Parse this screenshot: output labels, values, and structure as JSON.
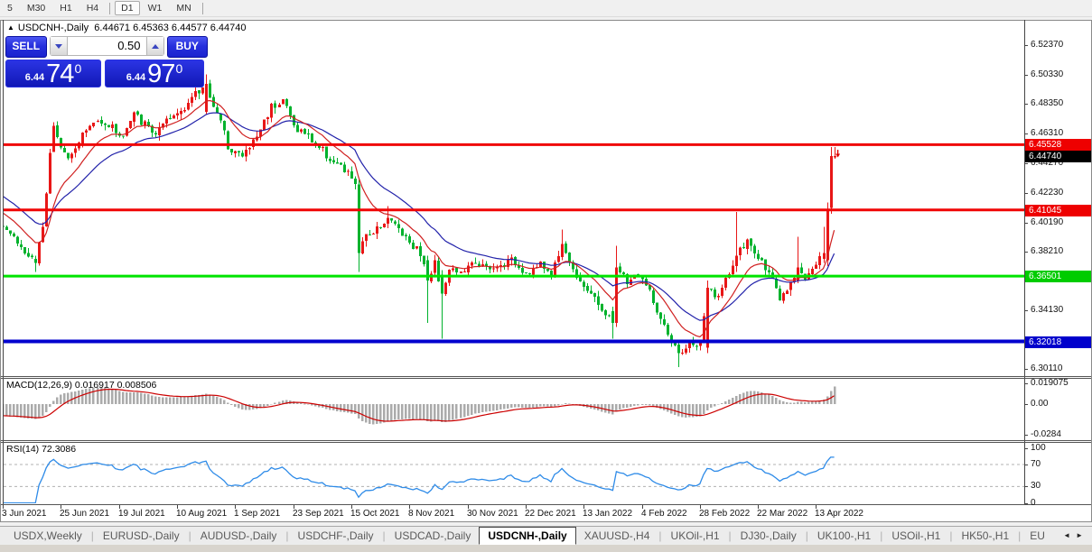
{
  "toolbar": {
    "groups": [
      [
        "5",
        "M30",
        "H1",
        "H4"
      ],
      [
        "D1",
        "W1",
        "MN"
      ]
    ],
    "active": "D1"
  },
  "header": {
    "arrow": "▲",
    "symbol": "USDCNH-,Daily",
    "ohlc": "6.44671 6.45363 6.44577 6.44740"
  },
  "trade": {
    "sell_label": "SELL",
    "buy_label": "BUY",
    "spread": "0.50",
    "sell_price": {
      "prefix": "6.44",
      "big": "74",
      "sup": "0"
    },
    "buy_price": {
      "prefix": "6.44",
      "big": "97",
      "sup": "0"
    }
  },
  "chart_data": {
    "type": "candlestick",
    "symbol": "USDCNH-",
    "period": "Daily",
    "bars": 230,
    "colors": {
      "up": "#e81717",
      "down": "#00b22d",
      "ma_fast": "#d02020",
      "ma_slow": "#2222aa",
      "macd_hist": "#ababab",
      "macd_signal": "#cc0000",
      "rsi": "#2e8be8",
      "dash": "#b0b0b0",
      "axis_text": "#111111"
    },
    "price_axis_ticks": [
      {
        "v": 6.5237,
        "label": "6.52370"
      },
      {
        "v": 6.5033,
        "label": "6.50330"
      },
      {
        "v": 6.4835,
        "label": "6.48350"
      },
      {
        "v": 6.4631,
        "label": "6.46310"
      },
      {
        "v": 6.4427,
        "label": "6.44270"
      },
      {
        "v": 6.4223,
        "label": "6.42230"
      },
      {
        "v": 6.4019,
        "label": "6.40190"
      },
      {
        "v": 6.3821,
        "label": "6.38210"
      },
      {
        "v": 6.3617,
        "label": "6.36170"
      },
      {
        "v": 6.3413,
        "label": "6.34130"
      },
      {
        "v": 6.3011,
        "label": "6.30110"
      }
    ],
    "levels": [
      {
        "v": 6.45528,
        "label": "6.45528",
        "color": "#f00505",
        "badge": "#ee0000",
        "thickness": 3
      },
      {
        "v": 6.41045,
        "label": "6.41045",
        "color": "#f00505",
        "badge": "#ee0000",
        "thickness": 3
      },
      {
        "v": 6.36501,
        "label": "6.36501",
        "color": "#00e400",
        "badge": "#00cc00",
        "thickness": 3
      },
      {
        "v": 6.32018,
        "label": "6.32018",
        "color": "#0202cf",
        "badge": "#0000cc",
        "thickness": 4
      }
    ],
    "last_price": {
      "v": 6.4474,
      "label": "6.44740",
      "badge": "#000000"
    },
    "x_labels": [
      {
        "bar": 0,
        "label": "3 Jun 2021"
      },
      {
        "bar": 16,
        "label": "25 Jun 2021"
      },
      {
        "bar": 32,
        "label": "19 Jul 2021"
      },
      {
        "bar": 48,
        "label": "10 Aug 2021"
      },
      {
        "bar": 64,
        "label": "1 Sep 2021"
      },
      {
        "bar": 80,
        "label": "23 Sep 2021"
      },
      {
        "bar": 96,
        "label": "15 Oct 2021"
      },
      {
        "bar": 112,
        "label": "8 Nov 2021"
      },
      {
        "bar": 128,
        "label": "30 Nov 2021"
      },
      {
        "bar": 144,
        "label": "22 Dec 2021"
      },
      {
        "bar": 160,
        "label": "13 Jan 2022"
      },
      {
        "bar": 176,
        "label": "4 Feb 2022"
      },
      {
        "bar": 192,
        "label": "28 Feb 2022"
      },
      {
        "bar": 208,
        "label": "22 Mar 2022"
      },
      {
        "bar": 224,
        "label": "13 Apr 2022"
      }
    ],
    "keyframes": [
      [
        0,
        6.401
      ],
      [
        3,
        6.392
      ],
      [
        6,
        6.381
      ],
      [
        9,
        6.374
      ],
      [
        11,
        6.398
      ],
      [
        13,
        6.452
      ],
      [
        14,
        6.47
      ],
      [
        16,
        6.456
      ],
      [
        18,
        6.447
      ],
      [
        21,
        6.459
      ],
      [
        24,
        6.468
      ],
      [
        27,
        6.473
      ],
      [
        30,
        6.467
      ],
      [
        33,
        6.461
      ],
      [
        36,
        6.476
      ],
      [
        39,
        6.469
      ],
      [
        42,
        6.463
      ],
      [
        45,
        6.47
      ],
      [
        48,
        6.477
      ],
      [
        51,
        6.485
      ],
      [
        56,
        6.496
      ],
      [
        59,
        6.477
      ],
      [
        62,
        6.455
      ],
      [
        66,
        6.447
      ],
      [
        70,
        6.461
      ],
      [
        74,
        6.482
      ],
      [
        77,
        6.487
      ],
      [
        80,
        6.468
      ],
      [
        84,
        6.461
      ],
      [
        88,
        6.451
      ],
      [
        92,
        6.441
      ],
      [
        96,
        6.433
      ],
      [
        97,
        6.429
      ],
      [
        98,
        6.381
      ],
      [
        100,
        6.392
      ],
      [
        103,
        6.399
      ],
      [
        106,
        6.404
      ],
      [
        109,
        6.398
      ],
      [
        112,
        6.389
      ],
      [
        115,
        6.381
      ],
      [
        117,
        6.362
      ],
      [
        119,
        6.374
      ],
      [
        121,
        6.353
      ],
      [
        123,
        6.371
      ],
      [
        126,
        6.367
      ],
      [
        130,
        6.375
      ],
      [
        134,
        6.369
      ],
      [
        137,
        6.372
      ],
      [
        140,
        6.376
      ],
      [
        144,
        6.367
      ],
      [
        148,
        6.373
      ],
      [
        151,
        6.366
      ],
      [
        154,
        6.387
      ],
      [
        157,
        6.369
      ],
      [
        160,
        6.359
      ],
      [
        163,
        6.349
      ],
      [
        166,
        6.339
      ],
      [
        168,
        6.333
      ],
      [
        169,
        6.371
      ],
      [
        172,
        6.361
      ],
      [
        175,
        6.367
      ],
      [
        178,
        6.354
      ],
      [
        181,
        6.334
      ],
      [
        184,
        6.319
      ],
      [
        186,
        6.312
      ],
      [
        189,
        6.318
      ],
      [
        192,
        6.317
      ],
      [
        194,
        6.357
      ],
      [
        197,
        6.351
      ],
      [
        200,
        6.367
      ],
      [
        202,
        6.379
      ],
      [
        205,
        6.389
      ],
      [
        208,
        6.377
      ],
      [
        211,
        6.369
      ],
      [
        214,
        6.348
      ],
      [
        217,
        6.359
      ],
      [
        219,
        6.371
      ],
      [
        221,
        6.364
      ],
      [
        224,
        6.373
      ],
      [
        226,
        6.381
      ],
      [
        227,
        6.41
      ],
      [
        228,
        6.4474
      ],
      [
        229,
        6.4474
      ]
    ],
    "overrides": [
      {
        "i": 9,
        "o": 6.377,
        "h": 6.379,
        "l": 6.368,
        "c": 6.374
      },
      {
        "i": 56,
        "o": 6.478,
        "h": 6.5035,
        "l": 6.476,
        "c": 6.497
      },
      {
        "i": 98,
        "o": 6.428,
        "h": 6.431,
        "l": 6.368,
        "c": 6.381
      },
      {
        "i": 106,
        "o": 6.401,
        "h": 6.413,
        "l": 6.398,
        "c": 6.405
      },
      {
        "i": 117,
        "o": 6.376,
        "h": 6.379,
        "l": 6.333,
        "c": 6.362
      },
      {
        "i": 121,
        "o": 6.366,
        "h": 6.369,
        "l": 6.322,
        "c": 6.353
      },
      {
        "i": 154,
        "o": 6.378,
        "h": 6.397,
        "l": 6.376,
        "c": 6.387
      },
      {
        "i": 168,
        "o": 6.341,
        "h": 6.344,
        "l": 6.322,
        "c": 6.333
      },
      {
        "i": 169,
        "o": 6.333,
        "h": 6.386,
        "l": 6.33,
        "c": 6.371
      },
      {
        "i": 186,
        "o": 6.318,
        "h": 6.321,
        "l": 6.3025,
        "c": 6.312
      },
      {
        "i": 194,
        "o": 6.316,
        "h": 6.362,
        "l": 6.312,
        "c": 6.357
      },
      {
        "i": 202,
        "o": 6.372,
        "h": 6.409,
        "l": 6.368,
        "c": 6.379
      },
      {
        "i": 219,
        "o": 6.362,
        "h": 6.392,
        "l": 6.36,
        "c": 6.371
      },
      {
        "i": 226,
        "o": 6.377,
        "h": 6.399,
        "l": 6.374,
        "c": 6.381
      },
      {
        "i": 227,
        "o": 6.376,
        "h": 6.4155,
        "l": 6.372,
        "c": 6.41
      },
      {
        "i": 228,
        "o": 6.412,
        "h": 6.4536,
        "l": 6.408,
        "c": 6.4474
      },
      {
        "i": 229,
        "o": 6.44671,
        "h": 6.45363,
        "l": 6.44577,
        "c": 6.4474
      }
    ],
    "default_volatility": 0.0025,
    "volatility_zones": [
      {
        "from": 12,
        "to": 98,
        "v": 0.0034
      },
      {
        "from": 99,
        "to": 125,
        "v": 0.0029
      },
      {
        "from": 126,
        "to": 165,
        "v": 0.002
      },
      {
        "from": 166,
        "to": 210,
        "v": 0.0027
      },
      {
        "from": 211,
        "to": 226,
        "v": 0.0018
      }
    ],
    "warmup": {
      "bars": 40,
      "from": 6.47,
      "to": 6.401
    },
    "marker": {
      "bar": 229,
      "from": 6.4518,
      "to": 6.4472,
      "color": "#dd0000"
    },
    "indicators": {
      "ma_fast_period": 12,
      "ma_slow_period": 26,
      "macd": {
        "label": "MACD(12,26,9) 0.016917 0.008506",
        "axis": [
          {
            "v": 0.019075,
            "label": "0.019075"
          },
          {
            "v": 0.0,
            "label": "0.00"
          },
          {
            "v": -0.0284,
            "label": "-0.0284"
          }
        ]
      },
      "rsi": {
        "label": "RSI(14) 72.3086",
        "period": 14,
        "levels": [
          70,
          30
        ],
        "axis": [
          {
            "v": 100,
            "label": "100"
          },
          {
            "v": 70,
            "label": "70"
          },
          {
            "v": 30,
            "label": "30"
          },
          {
            "v": 0,
            "label": "0"
          }
        ]
      }
    }
  },
  "tabs": {
    "items": [
      {
        "label": "USDX,Weekly"
      },
      {
        "label": "EURUSD-,Daily"
      },
      {
        "label": "AUDUSD-,Daily"
      },
      {
        "label": "USDCHF-,Daily"
      },
      {
        "label": "USDCAD-,Daily"
      },
      {
        "label": "USDCNH-,Daily",
        "active": true
      },
      {
        "label": "XAUUSD-,H4"
      },
      {
        "label": "UKOil-,H1"
      },
      {
        "label": "DJ30-,Daily"
      },
      {
        "label": "UK100-,H1"
      },
      {
        "label": "USOil-,H1"
      },
      {
        "label": "HK50-,H1"
      },
      {
        "label": "EU"
      }
    ],
    "scroll_left": "◄",
    "scroll_right": "►"
  }
}
